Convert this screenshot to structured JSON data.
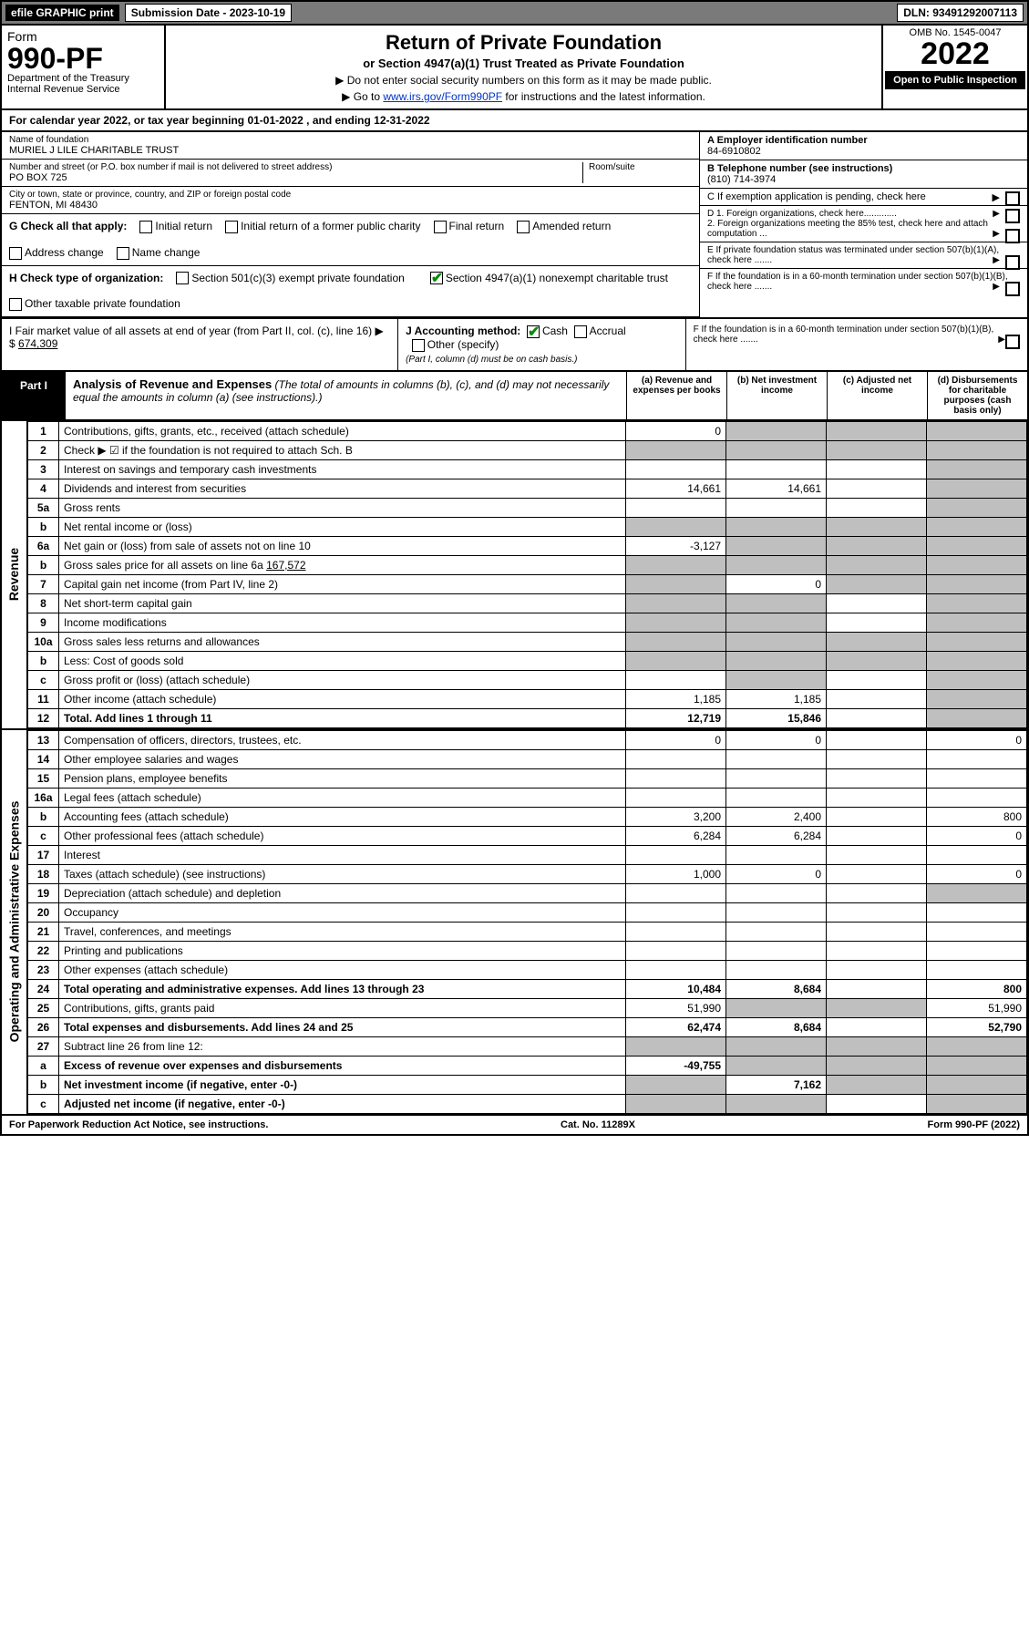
{
  "topbar": {
    "efile": "efile GRAPHIC print",
    "subdate_label": "Submission Date - 2023-10-19",
    "dln": "DLN: 93491292007113"
  },
  "header": {
    "form_word": "Form",
    "form_number": "990-PF",
    "dept1": "Department of the Treasury",
    "dept2": "Internal Revenue Service",
    "title": "Return of Private Foundation",
    "subtitle": "or Section 4947(a)(1) Trust Treated as Private Foundation",
    "instr1": "▶ Do not enter social security numbers on this form as it may be made public.",
    "instr2_pre": "▶ Go to ",
    "instr2_link": "www.irs.gov/Form990PF",
    "instr2_post": " for instructions and the latest information.",
    "omb": "OMB No. 1545-0047",
    "year": "2022",
    "open": "Open to Public Inspection"
  },
  "cal_year": "For calendar year 2022, or tax year beginning 01-01-2022            , and ending 12-31-2022",
  "info": {
    "name_lbl": "Name of foundation",
    "name": "MURIEL J LILE CHARITABLE TRUST",
    "addr_lbl": "Number and street (or P.O. box number if mail is not delivered to street address)",
    "addr": "PO BOX 725",
    "room_lbl": "Room/suite",
    "room": "",
    "city_lbl": "City or town, state or province, country, and ZIP or foreign postal code",
    "city": "FENTON, MI  48430",
    "A_lbl": "A Employer identification number",
    "A_val": "84-6910802",
    "B_lbl": "B Telephone number (see instructions)",
    "B_val": "(810) 714-3974",
    "C_lbl": "C If exemption application is pending, check here",
    "D1": "D 1. Foreign organizations, check here.............",
    "D2": "2. Foreign organizations meeting the 85% test, check here and attach computation ...",
    "E": "E  If private foundation status was terminated under section 507(b)(1)(A), check here .......",
    "F": "F  If the foundation is in a 60-month termination under section 507(b)(1)(B), check here .......",
    "G_lbl": "G Check all that apply:",
    "g_opts": [
      "Initial return",
      "Initial return of a former public charity",
      "Final return",
      "Amended return",
      "Address change",
      "Name change"
    ],
    "H_lbl": "H Check type of organization:",
    "h1": "Section 501(c)(3) exempt private foundation",
    "h2": "Section 4947(a)(1) nonexempt charitable trust",
    "h3": "Other taxable private foundation",
    "I_lbl": "I Fair market value of all assets at end of year (from Part II, col. (c), line 16) ▶ $ ",
    "I_val": "674,309",
    "J_lbl": "J Accounting method:",
    "j_cash": "Cash",
    "j_accrual": "Accrual",
    "j_other": "Other (specify)",
    "j_note": "(Part I, column (d) must be on cash basis.)"
  },
  "part1": {
    "tab": "Part I",
    "title": "Analysis of Revenue and Expenses",
    "title_note": "(The total of amounts in columns (b), (c), and (d) may not necessarily equal the amounts in column (a) (see instructions).)",
    "col_a": "(a)  Revenue and expenses per books",
    "col_b": "(b)  Net investment income",
    "col_c": "(c)  Adjusted net income",
    "col_d": "(d)  Disbursements for charitable purposes (cash basis only)"
  },
  "sections": {
    "revenue": "Revenue",
    "opex": "Operating and Administrative Expenses"
  },
  "rows": {
    "r1": {
      "no": "1",
      "desc": "Contributions, gifts, grants, etc., received (attach schedule)",
      "a": "0",
      "b": "",
      "c": "",
      "d": "",
      "grey": [
        "b",
        "c",
        "d"
      ]
    },
    "r2": {
      "no": "2",
      "desc": "Check ▶ ☑ if the foundation is not required to attach Sch. B",
      "a": "",
      "b": "",
      "c": "",
      "d": "",
      "grey": [
        "a",
        "b",
        "c",
        "d"
      ],
      "checkbox": true
    },
    "r3": {
      "no": "3",
      "desc": "Interest on savings and temporary cash investments",
      "a": "",
      "b": "",
      "c": "",
      "d": "",
      "grey": [
        "d"
      ]
    },
    "r4": {
      "no": "4",
      "desc": "Dividends and interest from securities",
      "a": "14,661",
      "b": "14,661",
      "c": "",
      "d": "",
      "grey": [
        "d"
      ]
    },
    "r5a": {
      "no": "5a",
      "desc": "Gross rents",
      "a": "",
      "b": "",
      "c": "",
      "d": "",
      "grey": [
        "d"
      ]
    },
    "r5b": {
      "no": "b",
      "desc": "Net rental income or (loss)",
      "a": "",
      "b": "",
      "c": "",
      "d": "",
      "grey": [
        "a",
        "b",
        "c",
        "d"
      ]
    },
    "r6a": {
      "no": "6a",
      "desc": "Net gain or (loss) from sale of assets not on line 10",
      "a": "-3,127",
      "b": "",
      "c": "",
      "d": "",
      "grey": [
        "b",
        "c",
        "d"
      ]
    },
    "r6b": {
      "no": "b",
      "desc": "Gross sales price for all assets on line 6a",
      "sub": "167,572",
      "a": "",
      "b": "",
      "c": "",
      "d": "",
      "grey": [
        "a",
        "b",
        "c",
        "d"
      ]
    },
    "r7": {
      "no": "7",
      "desc": "Capital gain net income (from Part IV, line 2)",
      "a": "",
      "b": "0",
      "c": "",
      "d": "",
      "grey": [
        "a",
        "c",
        "d"
      ]
    },
    "r8": {
      "no": "8",
      "desc": "Net short-term capital gain",
      "a": "",
      "b": "",
      "c": "",
      "d": "",
      "grey": [
        "a",
        "b",
        "d"
      ]
    },
    "r9": {
      "no": "9",
      "desc": "Income modifications",
      "a": "",
      "b": "",
      "c": "",
      "d": "",
      "grey": [
        "a",
        "b",
        "d"
      ]
    },
    "r10a": {
      "no": "10a",
      "desc": "Gross sales less returns and allowances",
      "a": "",
      "b": "",
      "c": "",
      "d": "",
      "grey": [
        "a",
        "b",
        "c",
        "d"
      ]
    },
    "r10b": {
      "no": "b",
      "desc": "Less: Cost of goods sold",
      "a": "",
      "b": "",
      "c": "",
      "d": "",
      "grey": [
        "a",
        "b",
        "c",
        "d"
      ]
    },
    "r10c": {
      "no": "c",
      "desc": "Gross profit or (loss) (attach schedule)",
      "a": "",
      "b": "",
      "c": "",
      "d": "",
      "grey": [
        "b",
        "d"
      ]
    },
    "r11": {
      "no": "11",
      "desc": "Other income (attach schedule)",
      "a": "1,185",
      "b": "1,185",
      "c": "",
      "d": "",
      "grey": [
        "d"
      ]
    },
    "r12": {
      "no": "12",
      "desc": "Total. Add lines 1 through 11",
      "a": "12,719",
      "b": "15,846",
      "c": "",
      "d": "",
      "grey": [
        "d"
      ],
      "bold": true
    },
    "r13": {
      "no": "13",
      "desc": "Compensation of officers, directors, trustees, etc.",
      "a": "0",
      "b": "0",
      "c": "",
      "d": "0"
    },
    "r14": {
      "no": "14",
      "desc": "Other employee salaries and wages",
      "a": "",
      "b": "",
      "c": "",
      "d": ""
    },
    "r15": {
      "no": "15",
      "desc": "Pension plans, employee benefits",
      "a": "",
      "b": "",
      "c": "",
      "d": ""
    },
    "r16a": {
      "no": "16a",
      "desc": "Legal fees (attach schedule)",
      "a": "",
      "b": "",
      "c": "",
      "d": ""
    },
    "r16b": {
      "no": "b",
      "desc": "Accounting fees (attach schedule)",
      "a": "3,200",
      "b": "2,400",
      "c": "",
      "d": "800"
    },
    "r16c": {
      "no": "c",
      "desc": "Other professional fees (attach schedule)",
      "a": "6,284",
      "b": "6,284",
      "c": "",
      "d": "0"
    },
    "r17": {
      "no": "17",
      "desc": "Interest",
      "a": "",
      "b": "",
      "c": "",
      "d": ""
    },
    "r18": {
      "no": "18",
      "desc": "Taxes (attach schedule) (see instructions)",
      "a": "1,000",
      "b": "0",
      "c": "",
      "d": "0"
    },
    "r19": {
      "no": "19",
      "desc": "Depreciation (attach schedule) and depletion",
      "a": "",
      "b": "",
      "c": "",
      "d": "",
      "grey": [
        "d"
      ]
    },
    "r20": {
      "no": "20",
      "desc": "Occupancy",
      "a": "",
      "b": "",
      "c": "",
      "d": ""
    },
    "r21": {
      "no": "21",
      "desc": "Travel, conferences, and meetings",
      "a": "",
      "b": "",
      "c": "",
      "d": ""
    },
    "r22": {
      "no": "22",
      "desc": "Printing and publications",
      "a": "",
      "b": "",
      "c": "",
      "d": ""
    },
    "r23": {
      "no": "23",
      "desc": "Other expenses (attach schedule)",
      "a": "",
      "b": "",
      "c": "",
      "d": ""
    },
    "r24": {
      "no": "24",
      "desc": "Total operating and administrative expenses. Add lines 13 through 23",
      "a": "10,484",
      "b": "8,684",
      "c": "",
      "d": "800",
      "bold": true
    },
    "r25": {
      "no": "25",
      "desc": "Contributions, gifts, grants paid",
      "a": "51,990",
      "b": "",
      "c": "",
      "d": "51,990",
      "grey": [
        "b",
        "c"
      ]
    },
    "r26": {
      "no": "26",
      "desc": "Total expenses and disbursements. Add lines 24 and 25",
      "a": "62,474",
      "b": "8,684",
      "c": "",
      "d": "52,790",
      "bold": true
    },
    "r27": {
      "no": "27",
      "desc": "Subtract line 26 from line 12:",
      "a": "",
      "b": "",
      "c": "",
      "d": "",
      "grey": [
        "a",
        "b",
        "c",
        "d"
      ]
    },
    "r27a": {
      "no": "a",
      "desc": "Excess of revenue over expenses and disbursements",
      "a": "-49,755",
      "b": "",
      "c": "",
      "d": "",
      "grey": [
        "b",
        "c",
        "d"
      ],
      "bold": true
    },
    "r27b": {
      "no": "b",
      "desc": "Net investment income (if negative, enter -0-)",
      "a": "",
      "b": "7,162",
      "c": "",
      "d": "",
      "grey": [
        "a",
        "c",
        "d"
      ],
      "bold": true
    },
    "r27c": {
      "no": "c",
      "desc": "Adjusted net income (if negative, enter -0-)",
      "a": "",
      "b": "",
      "c": "",
      "d": "",
      "grey": [
        "a",
        "b",
        "d"
      ],
      "bold": true
    }
  },
  "footer": {
    "left": "For Paperwork Reduction Act Notice, see instructions.",
    "mid": "Cat. No. 11289X",
    "right": "Form 990-PF (2022)"
  },
  "colors": {
    "topbar_bg": "#7a7a7a",
    "black": "#000000",
    "grey_cell": "#bfbfbf",
    "link": "#0033cc",
    "check_green": "#0a8a0a"
  }
}
